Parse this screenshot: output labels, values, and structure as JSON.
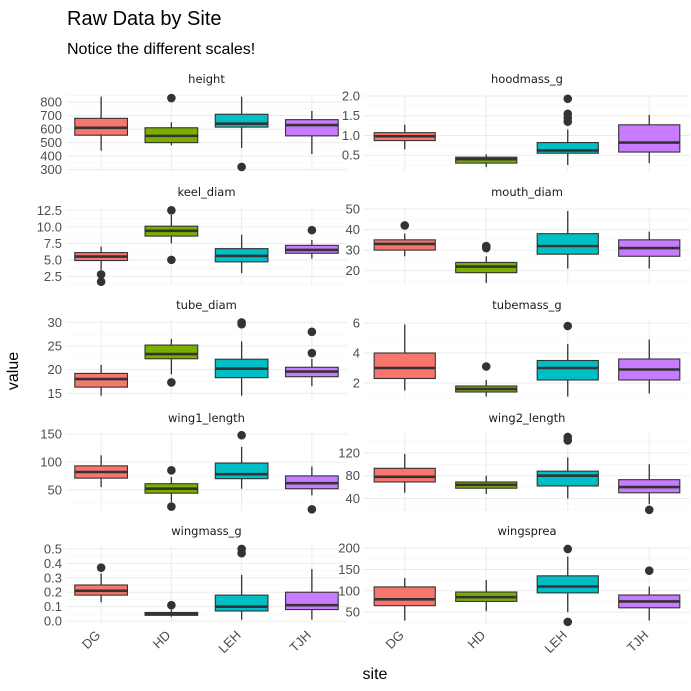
{
  "chart_data": {
    "type": "boxplot",
    "title": "Raw Data by Site",
    "subtitle": "Notice the different scales!",
    "xlabel": "site",
    "ylabel": "value",
    "categories": [
      "DG",
      "HD",
      "LEH",
      "TJH"
    ],
    "colors": {
      "DG": "#F8766D",
      "HD": "#7CAE00",
      "LEH": "#00BFC4",
      "TJH": "#C77CFF"
    },
    "grid": true,
    "facet_layout": "5 rows x 2 columns, free y scales",
    "panels": [
      {
        "name": "height",
        "ylim": [
          290,
          860
        ],
        "yticks": [
          300,
          400,
          500,
          600,
          700,
          800
        ],
        "boxes": [
          {
            "site": "DG",
            "min": 440,
            "q1": 555,
            "median": 610,
            "q3": 680,
            "max": 840,
            "outliers": []
          },
          {
            "site": "HD",
            "min": 480,
            "q1": 500,
            "median": 550,
            "q3": 610,
            "max": 650,
            "outliers": [
              830
            ]
          },
          {
            "site": "LEH",
            "min": 460,
            "q1": 615,
            "median": 640,
            "q3": 710,
            "max": 840,
            "outliers": [
              320
            ]
          },
          {
            "site": "TJH",
            "min": 415,
            "q1": 550,
            "median": 630,
            "q3": 670,
            "max": 735,
            "outliers": []
          }
        ]
      },
      {
        "name": "hoodmass_g",
        "ylim": [
          0.1,
          2.05
        ],
        "yticks": [
          0.5,
          1.0,
          1.5,
          2.0
        ],
        "ytick_labels": [
          "0.5",
          "1.0",
          "1.5",
          "2.0"
        ],
        "boxes": [
          {
            "site": "DG",
            "min": 0.65,
            "q1": 0.87,
            "median": 0.98,
            "q3": 1.07,
            "max": 1.27,
            "outliers": []
          },
          {
            "site": "HD",
            "min": 0.2,
            "q1": 0.3,
            "median": 0.4,
            "q3": 0.45,
            "max": 0.52,
            "outliers": []
          },
          {
            "site": "LEH",
            "min": 0.25,
            "q1": 0.55,
            "median": 0.62,
            "q3": 0.82,
            "max": 1.15,
            "outliers": [
              1.35,
              1.45,
              1.55,
              1.93
            ]
          },
          {
            "site": "TJH",
            "min": 0.3,
            "q1": 0.58,
            "median": 0.82,
            "q3": 1.27,
            "max": 1.52,
            "outliers": []
          }
        ]
      },
      {
        "name": "keel_diam",
        "ylim": [
          1.2,
          13.0
        ],
        "yticks": [
          2.5,
          5.0,
          7.5,
          10.0,
          12.5
        ],
        "ytick_labels": [
          "2.5",
          "5.0",
          "7.5",
          "10.0",
          "12.5"
        ],
        "boxes": [
          {
            "site": "DG",
            "min": 3.5,
            "q1": 4.9,
            "median": 5.5,
            "q3": 6.1,
            "max": 7.0,
            "outliers": [
              2.8,
              1.7
            ]
          },
          {
            "site": "HD",
            "min": 7.5,
            "q1": 8.6,
            "median": 9.4,
            "q3": 10.1,
            "max": 11.8,
            "outliers": [
              12.5,
              5.0
            ]
          },
          {
            "site": "LEH",
            "min": 3.0,
            "q1": 4.7,
            "median": 5.6,
            "q3": 6.7,
            "max": 8.8,
            "outliers": []
          },
          {
            "site": "TJH",
            "min": 5.2,
            "q1": 6.0,
            "median": 6.5,
            "q3": 7.2,
            "max": 8.0,
            "outliers": [
              9.5
            ]
          }
        ]
      },
      {
        "name": "mouth_diam",
        "ylim": [
          13,
          51
        ],
        "yticks": [
          20,
          30,
          40,
          50
        ],
        "boxes": [
          {
            "site": "DG",
            "min": 27,
            "q1": 30,
            "median": 33,
            "q3": 35,
            "max": 38,
            "outliers": [
              42
            ]
          },
          {
            "site": "HD",
            "min": 14,
            "q1": 19,
            "median": 22,
            "q3": 24,
            "max": 27,
            "outliers": [
              31,
              32
            ]
          },
          {
            "site": "LEH",
            "min": 21,
            "q1": 28,
            "median": 32,
            "q3": 38,
            "max": 49,
            "outliers": []
          },
          {
            "site": "TJH",
            "min": 21,
            "q1": 27,
            "median": 31,
            "q3": 35,
            "max": 39,
            "outliers": []
          }
        ]
      },
      {
        "name": "tube_diam",
        "ylim": [
          14,
          30.5
        ],
        "yticks": [
          15,
          20,
          25,
          30
        ],
        "boxes": [
          {
            "site": "DG",
            "min": 14.5,
            "q1": 16.3,
            "median": 18,
            "q3": 19.2,
            "max": 21,
            "outliers": []
          },
          {
            "site": "HD",
            "min": 19,
            "q1": 22.3,
            "median": 23.3,
            "q3": 25.2,
            "max": 26.5,
            "outliers": [
              17.3
            ]
          },
          {
            "site": "LEH",
            "min": 14.5,
            "q1": 18.3,
            "median": 20.2,
            "q3": 22.2,
            "max": 26,
            "outliers": [
              29.6,
              30.0
            ]
          },
          {
            "site": "TJH",
            "min": 16.5,
            "q1": 18.5,
            "median": 19.6,
            "q3": 20.5,
            "max": 22.3,
            "outliers": [
              23.5,
              28
            ]
          }
        ]
      },
      {
        "name": "tubemass_g",
        "ylim": [
          1.0,
          6.2
        ],
        "yticks": [
          2,
          4,
          6
        ],
        "boxes": [
          {
            "site": "DG",
            "min": 1.5,
            "q1": 2.3,
            "median": 3.0,
            "q3": 4.0,
            "max": 5.9,
            "outliers": []
          },
          {
            "site": "HD",
            "min": 1.1,
            "q1": 1.4,
            "median": 1.6,
            "q3": 1.8,
            "max": 2.2,
            "outliers": [
              3.1
            ]
          },
          {
            "site": "LEH",
            "min": 1.1,
            "q1": 2.2,
            "median": 3.0,
            "q3": 3.5,
            "max": 4.6,
            "outliers": [
              5.8
            ]
          },
          {
            "site": "TJH",
            "min": 1.3,
            "q1": 2.2,
            "median": 2.9,
            "q3": 3.6,
            "max": 4.9,
            "outliers": []
          }
        ]
      },
      {
        "name": "wing1_length",
        "ylim": [
          12,
          152
        ],
        "yticks": [
          50,
          100,
          150
        ],
        "boxes": [
          {
            "site": "DG",
            "min": 55,
            "q1": 71,
            "median": 82,
            "q3": 93,
            "max": 112,
            "outliers": []
          },
          {
            "site": "HD",
            "min": 28,
            "q1": 44,
            "median": 52,
            "q3": 61,
            "max": 73,
            "outliers": [
              85,
              20
            ]
          },
          {
            "site": "LEH",
            "min": 52,
            "q1": 70,
            "median": 78,
            "q3": 98,
            "max": 127,
            "outliers": [
              148
            ]
          },
          {
            "site": "TJH",
            "min": 40,
            "q1": 52,
            "median": 62,
            "q3": 75,
            "max": 92,
            "outliers": [
              15
            ]
          }
        ]
      },
      {
        "name": "wing2_length",
        "ylim": [
          18,
          155
        ],
        "yticks": [
          40,
          80,
          120
        ],
        "boxes": [
          {
            "site": "DG",
            "min": 50,
            "q1": 69,
            "median": 78,
            "q3": 93,
            "max": 118,
            "outliers": []
          },
          {
            "site": "HD",
            "min": 48,
            "q1": 58,
            "median": 64,
            "q3": 69,
            "max": 80,
            "outliers": []
          },
          {
            "site": "LEH",
            "min": 40,
            "q1": 62,
            "median": 80,
            "q3": 88,
            "max": 112,
            "outliers": [
              142,
              148
            ]
          },
          {
            "site": "TJH",
            "min": 30,
            "q1": 50,
            "median": 60,
            "q3": 73,
            "max": 100,
            "outliers": [
              20
            ]
          }
        ]
      },
      {
        "name": "wingmass_g",
        "ylim": [
          -0.02,
          0.52
        ],
        "yticks": [
          0.0,
          0.1,
          0.2,
          0.3,
          0.4,
          0.5
        ],
        "ytick_labels": [
          "0.0",
          "0.1",
          "0.2",
          "0.3",
          "0.4",
          "0.5"
        ],
        "boxes": [
          {
            "site": "DG",
            "min": 0.13,
            "q1": 0.18,
            "median": 0.21,
            "q3": 0.25,
            "max": 0.33,
            "outliers": [
              0.37
            ]
          },
          {
            "site": "HD",
            "min": 0.03,
            "q1": 0.04,
            "median": 0.05,
            "q3": 0.06,
            "max": 0.08,
            "outliers": [
              0.11
            ]
          },
          {
            "site": "LEH",
            "min": 0.01,
            "q1": 0.07,
            "median": 0.1,
            "q3": 0.18,
            "max": 0.32,
            "outliers": [
              0.47,
              0.5
            ]
          },
          {
            "site": "TJH",
            "min": 0.01,
            "q1": 0.08,
            "median": 0.11,
            "q3": 0.2,
            "max": 0.36,
            "outliers": []
          }
        ]
      },
      {
        "name": "wingsprea",
        "ylim": [
          22,
          205
        ],
        "yticks": [
          50,
          100,
          150,
          200
        ],
        "boxes": [
          {
            "site": "DG",
            "min": 30,
            "q1": 65,
            "median": 80,
            "q3": 109,
            "max": 130,
            "outliers": []
          },
          {
            "site": "HD",
            "min": 52,
            "q1": 75,
            "median": 85,
            "q3": 97,
            "max": 125,
            "outliers": []
          },
          {
            "site": "LEH",
            "min": 50,
            "q1": 95,
            "median": 110,
            "q3": 135,
            "max": 180,
            "outliers": [
              198,
              27
            ]
          },
          {
            "site": "TJH",
            "min": 30,
            "q1": 60,
            "median": 75,
            "q3": 90,
            "max": 110,
            "outliers": [
              147
            ]
          }
        ]
      }
    ]
  }
}
